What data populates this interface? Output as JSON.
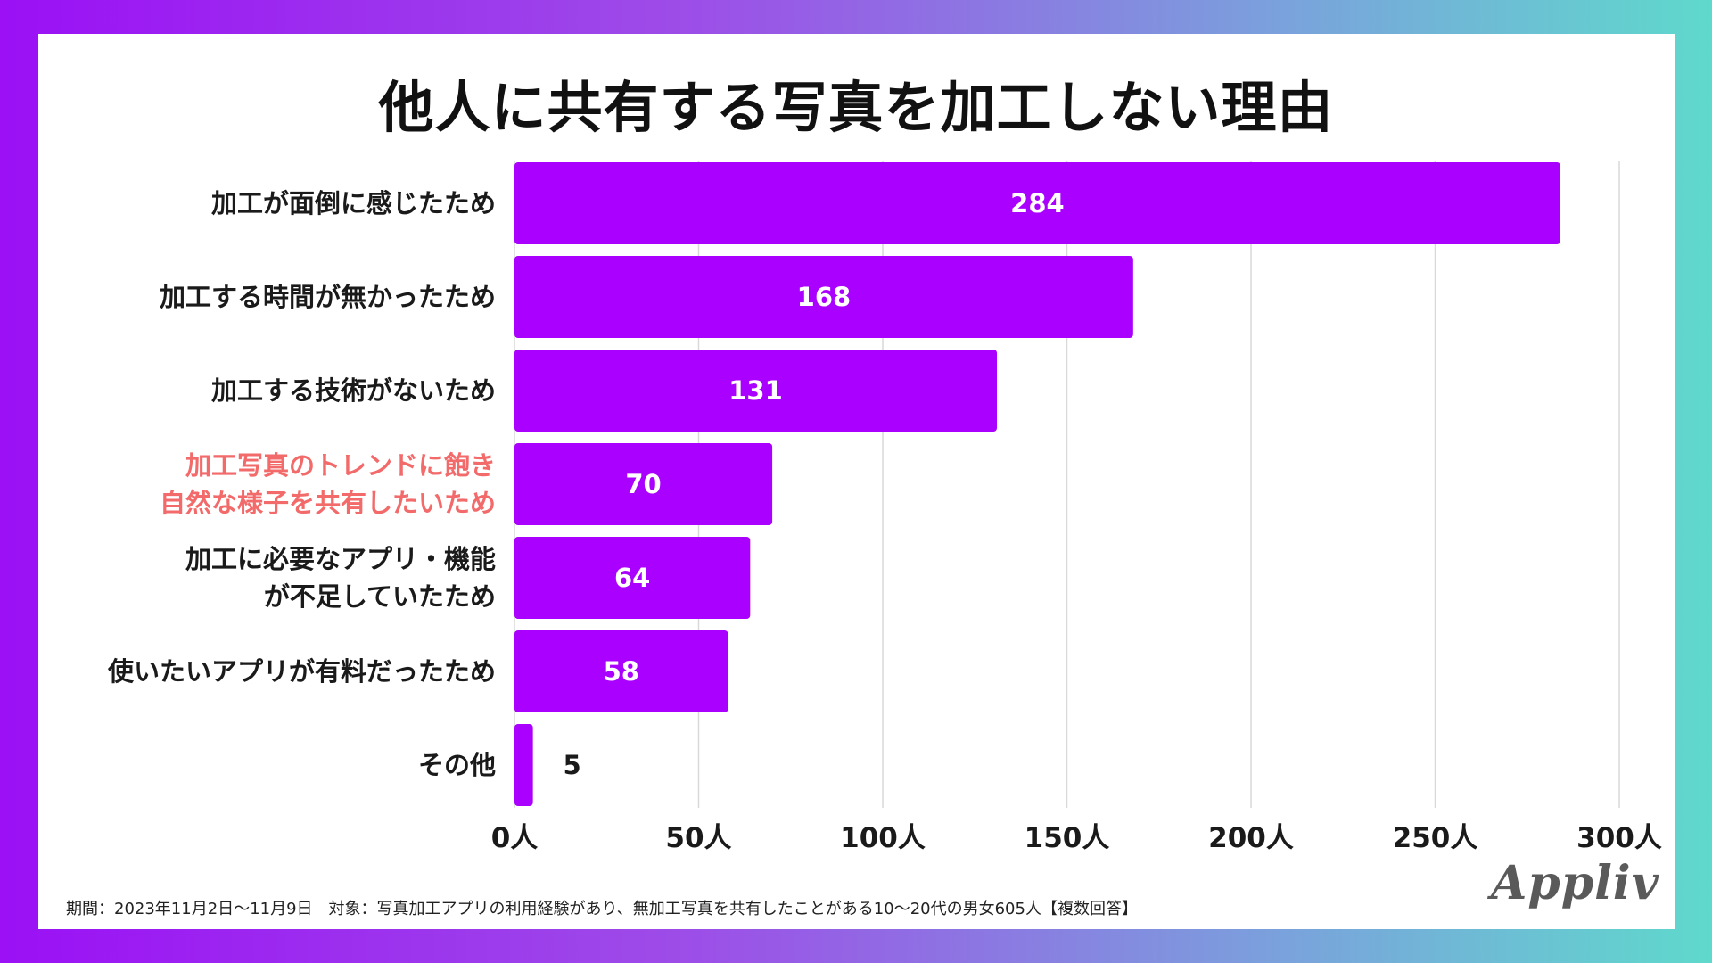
{
  "title": "他人に共有する写真を加工しない理由",
  "chart_data": {
    "type": "bar",
    "orientation": "horizontal",
    "title": "他人に共有する写真を加工しない理由",
    "categories": [
      [
        "加工が面倒に感じたため"
      ],
      [
        "加工する時間が無かったため"
      ],
      [
        "加工する技術がないため"
      ],
      [
        "加工写真のトレンドに飽き",
        "自然な様子を共有したいため"
      ],
      [
        "加工に必要なアプリ・機能",
        "が不足していたため"
      ],
      [
        "使いたいアプリが有料だったため"
      ],
      [
        "その他"
      ]
    ],
    "highlighted_index": 3,
    "values": [
      284,
      168,
      131,
      70,
      64,
      58,
      5
    ],
    "value_labels": [
      "284",
      "168",
      "131",
      "70",
      "64",
      "58",
      "5"
    ],
    "xlim": [
      0,
      300
    ],
    "x_ticks": [
      0,
      50,
      100,
      150,
      200,
      250,
      300
    ],
    "x_tick_labels": [
      "0人",
      "50人",
      "100人",
      "150人",
      "200人",
      "250人",
      "300人"
    ],
    "grid": true,
    "xlabel": "",
    "ylabel": ""
  },
  "colors": {
    "bar": "#aa00ff",
    "highlight_text": "#f26a6a",
    "grid": "#d9d9d9"
  },
  "footnote": "期間：2023年11月2日〜11月9日　対象：写真加工アプリの利用経験があり、無加工写真を共有したことがある10〜20代の男女605人【複数回答】",
  "logo_text": "Appliv"
}
